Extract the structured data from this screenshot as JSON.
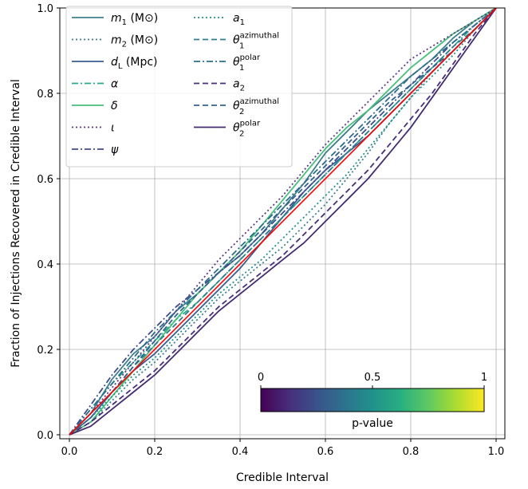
{
  "chart_data": {
    "type": "line",
    "title": "",
    "xlabel": "Credible Interval",
    "ylabel": "Fraction of Injections Recovered in Credible Interval",
    "xlim": [
      0,
      1
    ],
    "ylim": [
      0,
      1
    ],
    "xticks": [
      "0.0",
      "0.2",
      "0.4",
      "0.6",
      "0.8",
      "1.0"
    ],
    "yticks": [
      "0.0",
      "0.2",
      "0.4",
      "0.6",
      "0.8",
      "1.0"
    ],
    "grid": true,
    "legend_position": "upper-left",
    "reference_line": {
      "color": "#ff0000",
      "points": [
        [
          0,
          0
        ],
        [
          1,
          1
        ]
      ]
    },
    "legend": [
      {
        "main": "m",
        "sub": "1",
        "sup": "",
        "suffix": " (M⊙)",
        "style": "solid",
        "color": "#3e7f8e"
      },
      {
        "main": "m",
        "sub": "2",
        "sup": "",
        "suffix": " (M⊙)",
        "style": "dotted",
        "color": "#3e7f8e"
      },
      {
        "main": "d",
        "sub": "L",
        "sup": "",
        "suffix": " (Mpc)",
        "style": "solid",
        "color": "#3b5c93"
      },
      {
        "main": "α",
        "sub": "",
        "sup": "",
        "suffix": "",
        "style": "dashdot",
        "color": "#2aa88c"
      },
      {
        "main": "δ",
        "sub": "",
        "sup": "",
        "suffix": "",
        "style": "solid",
        "color": "#47c07b"
      },
      {
        "main": "ι",
        "sub": "",
        "sup": "",
        "suffix": "",
        "style": "dotted",
        "color": "#5b3a8a"
      },
      {
        "main": "ψ",
        "sub": "",
        "sup": "",
        "suffix": "",
        "style": "dashdot",
        "color": "#404b8a"
      },
      {
        "main": "a",
        "sub": "1",
        "sup": "",
        "suffix": "",
        "style": "dotted",
        "color": "#23918d"
      },
      {
        "main": "θ",
        "sub": "1",
        "sup": "azimuthal",
        "suffix": "",
        "style": "dashed",
        "color": "#2f7d8e"
      },
      {
        "main": "θ",
        "sub": "1",
        "sup": "polar",
        "suffix": "",
        "style": "dashdot",
        "color": "#2d6e8e"
      },
      {
        "main": "a",
        "sub": "2",
        "sup": "",
        "suffix": "",
        "style": "dashed",
        "color": "#46307c"
      },
      {
        "main": "θ",
        "sub": "2",
        "sup": "azimuthal",
        "suffix": "",
        "style": "dashed",
        "color": "#33638d"
      },
      {
        "main": "θ",
        "sub": "2",
        "sup": "polar",
        "suffix": "",
        "style": "solid",
        "color": "#442b72"
      }
    ],
    "series": [
      {
        "x": [
          0,
          0.05,
          0.1,
          0.15,
          0.2,
          0.25,
          0.3,
          0.35,
          0.4,
          0.45,
          0.5,
          0.55,
          0.6,
          0.65,
          0.7,
          0.75,
          0.8,
          0.85,
          0.9,
          0.95,
          1.0
        ],
        "y": [
          0,
          0.05,
          0.13,
          0.19,
          0.23,
          0.29,
          0.33,
          0.38,
          0.42,
          0.47,
          0.53,
          0.59,
          0.66,
          0.71,
          0.76,
          0.8,
          0.84,
          0.88,
          0.93,
          0.97,
          1.0
        ]
      },
      {
        "x": [
          0,
          0.05,
          0.1,
          0.15,
          0.2,
          0.25,
          0.3,
          0.35,
          0.4,
          0.45,
          0.5,
          0.55,
          0.6,
          0.65,
          0.7,
          0.75,
          0.8,
          0.85,
          0.9,
          0.95,
          1.0
        ],
        "y": [
          0,
          0.03,
          0.08,
          0.13,
          0.17,
          0.22,
          0.27,
          0.32,
          0.36,
          0.4,
          0.44,
          0.49,
          0.54,
          0.6,
          0.66,
          0.73,
          0.79,
          0.85,
          0.9,
          0.95,
          1.0
        ]
      },
      {
        "x": [
          0,
          0.05,
          0.1,
          0.15,
          0.2,
          0.25,
          0.3,
          0.35,
          0.4,
          0.45,
          0.5,
          0.55,
          0.6,
          0.65,
          0.7,
          0.75,
          0.8,
          0.85,
          0.9,
          0.95,
          1.0
        ],
        "y": [
          0,
          0.04,
          0.1,
          0.15,
          0.19,
          0.24,
          0.29,
          0.34,
          0.39,
          0.45,
          0.51,
          0.57,
          0.62,
          0.66,
          0.7,
          0.75,
          0.8,
          0.85,
          0.9,
          0.95,
          1.0
        ]
      },
      {
        "x": [
          0,
          0.05,
          0.1,
          0.15,
          0.2,
          0.25,
          0.3,
          0.35,
          0.4,
          0.45,
          0.5,
          0.55,
          0.6,
          0.65,
          0.7,
          0.75,
          0.8,
          0.85,
          0.9,
          0.95,
          1.0
        ],
        "y": [
          0,
          0.06,
          0.12,
          0.17,
          0.22,
          0.27,
          0.31,
          0.36,
          0.41,
          0.46,
          0.51,
          0.56,
          0.61,
          0.66,
          0.71,
          0.76,
          0.81,
          0.86,
          0.91,
          0.96,
          1.0
        ]
      },
      {
        "x": [
          0,
          0.05,
          0.1,
          0.15,
          0.2,
          0.25,
          0.3,
          0.35,
          0.4,
          0.45,
          0.5,
          0.55,
          0.6,
          0.65,
          0.7,
          0.75,
          0.8,
          0.85,
          0.9,
          0.95,
          1.0
        ],
        "y": [
          0,
          0.03,
          0.09,
          0.15,
          0.21,
          0.27,
          0.33,
          0.38,
          0.43,
          0.49,
          0.55,
          0.61,
          0.67,
          0.72,
          0.76,
          0.81,
          0.86,
          0.9,
          0.94,
          0.97,
          1.0
        ]
      },
      {
        "x": [
          0,
          0.05,
          0.1,
          0.15,
          0.2,
          0.25,
          0.3,
          0.35,
          0.4,
          0.45,
          0.5,
          0.55,
          0.6,
          0.65,
          0.7,
          0.75,
          0.8,
          0.85,
          0.9,
          0.95,
          1.0
        ],
        "y": [
          0,
          0.05,
          0.11,
          0.17,
          0.23,
          0.29,
          0.35,
          0.41,
          0.46,
          0.51,
          0.56,
          0.62,
          0.68,
          0.73,
          0.78,
          0.83,
          0.88,
          0.91,
          0.94,
          0.97,
          1.0
        ]
      },
      {
        "x": [
          0,
          0.05,
          0.1,
          0.15,
          0.2,
          0.25,
          0.3,
          0.35,
          0.4,
          0.45,
          0.5,
          0.55,
          0.6,
          0.65,
          0.7,
          0.75,
          0.8,
          0.85,
          0.9,
          0.95,
          1.0
        ],
        "y": [
          0,
          0.07,
          0.14,
          0.2,
          0.25,
          0.3,
          0.34,
          0.38,
          0.42,
          0.47,
          0.52,
          0.57,
          0.62,
          0.67,
          0.72,
          0.77,
          0.82,
          0.87,
          0.92,
          0.96,
          1.0
        ]
      },
      {
        "x": [
          0,
          0.05,
          0.1,
          0.15,
          0.2,
          0.25,
          0.3,
          0.35,
          0.4,
          0.45,
          0.5,
          0.55,
          0.6,
          0.65,
          0.7,
          0.75,
          0.8,
          0.85,
          0.9,
          0.95,
          1.0
        ],
        "y": [
          0,
          0.04,
          0.09,
          0.14,
          0.18,
          0.23,
          0.28,
          0.33,
          0.37,
          0.41,
          0.46,
          0.51,
          0.56,
          0.61,
          0.67,
          0.73,
          0.79,
          0.84,
          0.89,
          0.95,
          1.0
        ]
      },
      {
        "x": [
          0,
          0.05,
          0.1,
          0.15,
          0.2,
          0.25,
          0.3,
          0.35,
          0.4,
          0.45,
          0.5,
          0.55,
          0.6,
          0.65,
          0.7,
          0.75,
          0.8,
          0.85,
          0.9,
          0.95,
          1.0
        ],
        "y": [
          0,
          0.05,
          0.1,
          0.16,
          0.21,
          0.26,
          0.31,
          0.36,
          0.41,
          0.46,
          0.51,
          0.56,
          0.61,
          0.66,
          0.71,
          0.76,
          0.81,
          0.86,
          0.91,
          0.95,
          1.0
        ]
      },
      {
        "x": [
          0,
          0.05,
          0.1,
          0.15,
          0.2,
          0.25,
          0.3,
          0.35,
          0.4,
          0.45,
          0.5,
          0.55,
          0.6,
          0.65,
          0.7,
          0.75,
          0.8,
          0.85,
          0.9,
          0.95,
          1.0
        ],
        "y": [
          0,
          0.06,
          0.12,
          0.18,
          0.24,
          0.29,
          0.34,
          0.39,
          0.44,
          0.49,
          0.54,
          0.59,
          0.64,
          0.69,
          0.74,
          0.79,
          0.84,
          0.88,
          0.92,
          0.96,
          1.0
        ]
      },
      {
        "x": [
          0,
          0.05,
          0.1,
          0.15,
          0.2,
          0.25,
          0.3,
          0.35,
          0.4,
          0.45,
          0.5,
          0.55,
          0.6,
          0.65,
          0.7,
          0.75,
          0.8,
          0.85,
          0.9,
          0.95,
          1.0
        ],
        "y": [
          0,
          0.03,
          0.07,
          0.11,
          0.15,
          0.2,
          0.25,
          0.3,
          0.34,
          0.38,
          0.42,
          0.47,
          0.52,
          0.57,
          0.62,
          0.68,
          0.74,
          0.8,
          0.87,
          0.94,
          1.0
        ]
      },
      {
        "x": [
          0,
          0.05,
          0.1,
          0.15,
          0.2,
          0.25,
          0.3,
          0.35,
          0.4,
          0.45,
          0.5,
          0.55,
          0.6,
          0.65,
          0.7,
          0.75,
          0.8,
          0.85,
          0.9,
          0.95,
          1.0
        ],
        "y": [
          0,
          0.04,
          0.1,
          0.16,
          0.22,
          0.28,
          0.33,
          0.38,
          0.43,
          0.48,
          0.53,
          0.58,
          0.63,
          0.68,
          0.73,
          0.78,
          0.82,
          0.86,
          0.9,
          0.95,
          1.0
        ]
      },
      {
        "x": [
          0,
          0.05,
          0.1,
          0.15,
          0.2,
          0.25,
          0.3,
          0.35,
          0.4,
          0.45,
          0.5,
          0.55,
          0.6,
          0.65,
          0.7,
          0.75,
          0.8,
          0.85,
          0.9,
          0.95,
          1.0
        ],
        "y": [
          0,
          0.02,
          0.06,
          0.1,
          0.14,
          0.19,
          0.24,
          0.29,
          0.33,
          0.37,
          0.41,
          0.45,
          0.5,
          0.55,
          0.6,
          0.66,
          0.72,
          0.79,
          0.86,
          0.93,
          1.0
        ]
      }
    ],
    "colorbar": {
      "label": "p-value",
      "ticks": [
        "0",
        "0.5",
        "1"
      ],
      "colormap": "viridis",
      "range": [
        0,
        1
      ],
      "position": "lower-right"
    }
  }
}
